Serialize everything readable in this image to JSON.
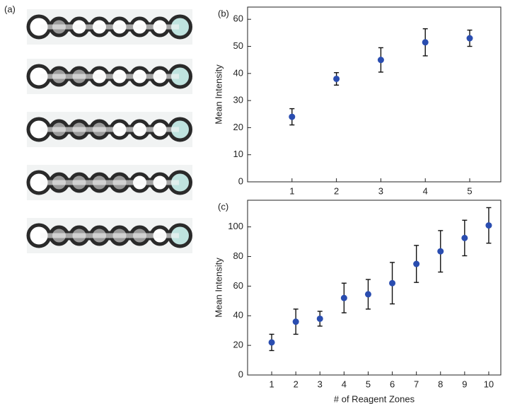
{
  "image_panel_label": "(a)",
  "chart_data": [
    {
      "type": "scatter",
      "panel_label": "(b)",
      "y_label": "Mean Intensity",
      "x": [
        1,
        2,
        3,
        4,
        5
      ],
      "values": [
        24,
        38,
        45,
        51.5,
        53
      ],
      "errors": [
        3,
        2.3,
        4.5,
        5,
        3
      ],
      "color": "#2a4db0",
      "xlim": [
        0,
        5.7
      ],
      "ylim": [
        0,
        64.5
      ],
      "xticks": [
        1,
        2,
        3,
        4,
        5
      ],
      "yticks": [
        0,
        10,
        20,
        30,
        40,
        50,
        60
      ]
    },
    {
      "type": "scatter",
      "panel_label": "(c)",
      "y_label": "Mean Intensity",
      "x_label": "# of Reagent Zones",
      "x": [
        1,
        2,
        3,
        4,
        5,
        6,
        7,
        8,
        9,
        10
      ],
      "values": [
        22,
        36,
        38,
        52,
        54.5,
        62,
        75,
        83.5,
        92.5,
        101
      ],
      "errors": [
        5.5,
        8.5,
        5,
        10,
        10,
        14,
        12.5,
        14,
        12,
        12
      ],
      "color": "#2a4db0",
      "xlim": [
        0,
        10.5
      ],
      "ylim": [
        0,
        118
      ],
      "xticks": [
        1,
        2,
        3,
        4,
        5,
        6,
        7,
        8,
        9,
        10
      ],
      "yticks": [
        0,
        20,
        40,
        60,
        80,
        100
      ]
    }
  ]
}
